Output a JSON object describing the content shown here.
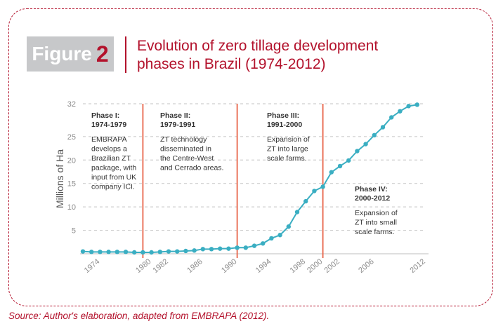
{
  "figure": {
    "word": "Figure",
    "number": "2",
    "title_lines": [
      "Evolution of zero tillage development",
      "phases in Brazil (1974-2012)"
    ]
  },
  "source": "Source: Author's elaboration, adapted from EMBRAPA (2012).",
  "colors": {
    "accent": "#b3122c",
    "line": "#3aaec2",
    "phase_line": "#e8654a",
    "grid": "#cfcfcf",
    "badge": "#c7c8ca"
  },
  "chart_data": {
    "type": "line",
    "title": "Evolution of zero tillage development phases in Brazil (1974-2012)",
    "xlabel": "",
    "ylabel": "Millions of Ha",
    "xlim": [
      1972,
      2012
    ],
    "ylim": [
      0,
      32
    ],
    "x_ticks": [
      "1974",
      "1980",
      "1982",
      "1986",
      "1990",
      "1994",
      "1998",
      "2000",
      "2002",
      "2006",
      "2012"
    ],
    "y_ticks": [
      5,
      10,
      15,
      20,
      25,
      32
    ],
    "grid": "horizontal dashed",
    "series": [
      {
        "x": [
          1972,
          1973,
          1974,
          1975,
          1976,
          1977,
          1978,
          1979,
          1980,
          1981,
          1982,
          1983,
          1984,
          1985,
          1986,
          1987,
          1988,
          1989,
          1990,
          1991,
          1992,
          1993,
          1994,
          1995,
          1996,
          1997,
          1998,
          1999,
          2000,
          2001,
          2002,
          2003,
          2004,
          2005,
          2006,
          2007,
          2008,
          2009,
          2010,
          2011
        ],
        "values": [
          0.5,
          0.4,
          0.4,
          0.4,
          0.4,
          0.4,
          0.3,
          0.3,
          0.3,
          0.4,
          0.5,
          0.5,
          0.6,
          0.7,
          1.0,
          1.0,
          1.1,
          1.1,
          1.3,
          1.3,
          1.7,
          2.2,
          3.3,
          4.0,
          5.8,
          8.9,
          11.2,
          13.4,
          14.3,
          17.4,
          18.7,
          19.9,
          21.9,
          23.4,
          25.3,
          27.0,
          29.1,
          30.4,
          31.5,
          31.8
        ]
      }
    ],
    "phase_lines": [
      1979,
      1990,
      2000
    ],
    "phases": [
      {
        "title": [
          "Phase I:",
          "1974-1979"
        ],
        "text": [
          "EMBRAPA",
          "develops a",
          "Brazilian ZT",
          "package, with",
          "input from UK",
          "company ICI."
        ]
      },
      {
        "title": [
          "Phase II:",
          "1979-1991"
        ],
        "text": [
          "ZT technology",
          "disseminated in",
          "the Centre-West",
          "and Cerrado areas."
        ]
      },
      {
        "title": [
          "Phase III:",
          "1991-2000"
        ],
        "text": [
          "Expansion of",
          "ZT into large",
          "scale farms."
        ]
      },
      {
        "title": [
          "Phase IV:",
          "2000-2012"
        ],
        "text": [
          "Expansion of",
          "ZT into small",
          "scale farms."
        ]
      }
    ]
  }
}
